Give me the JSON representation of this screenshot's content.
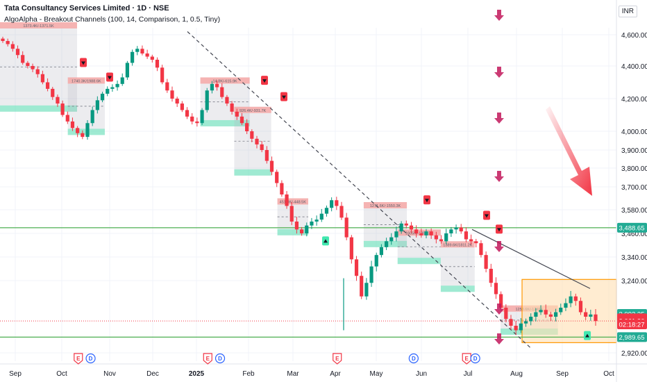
{
  "header": {
    "title": "Tata Consultancy Services Limited · 1D · NSE",
    "indicator": "AlgoAlpha - Breakout Channels (100, 14, Comparison, 1, 0.5, Tiny)",
    "currency": "INR"
  },
  "chart_data": {
    "type": "candlestick",
    "title": "Tata Consultancy Services Limited · 1D · NSE",
    "y_axis": {
      "ticks": [
        "4,600.00",
        "4,400.00",
        "4,200.00",
        "4,000.00",
        "3,900.00",
        "3,800.00",
        "3,700.00",
        "3,580.00",
        "3,460.00",
        "3,340.00",
        "3,240.00",
        "2,920.00"
      ],
      "tick_values": [
        4600,
        4400,
        4200,
        4000,
        3900,
        3800,
        3700,
        3580,
        3460,
        3340,
        3240,
        2920
      ]
    },
    "x_axis": {
      "labels": [
        "Sep",
        "Oct",
        "Nov",
        "Dec",
        "2025",
        "Feb",
        "Mar",
        "Apr",
        "May",
        "Jun",
        "Jul",
        "Aug",
        "Sep",
        "Oct"
      ]
    },
    "price_labels": [
      {
        "text": "3,488.65",
        "value": 3488.65,
        "color": "#22ab94"
      },
      {
        "text": "3,092.35",
        "value": 3092.35,
        "color": "#22ab94"
      },
      {
        "text": "3,072.73",
        "value": 3072.73,
        "color": "#f23645"
      },
      {
        "text": "3,061.30",
        "value": 3061.3,
        "color": "#f23645"
      },
      {
        "text": "02:18:27",
        "value": 3046,
        "color": "#f23645"
      },
      {
        "text": "2,989.65",
        "value": 2989.65,
        "color": "#22ab94"
      }
    ],
    "horizontal_lines": [
      {
        "value": 3488.65,
        "color": "#4caf50",
        "style": "solid"
      },
      {
        "value": 2989.65,
        "color": "#4caf50",
        "style": "solid"
      },
      {
        "value": 3061.3,
        "color": "#f23645",
        "style": "dotted"
      }
    ],
    "approx_closes": [
      4560,
      4540,
      4510,
      4470,
      4420,
      4400,
      4380,
      4350,
      4300,
      4260,
      4210,
      4170,
      4100,
      4060,
      4020,
      3990,
      3970,
      4050,
      4130,
      4190,
      4230,
      4260,
      4270,
      4290,
      4330,
      4420,
      4490,
      4510,
      4480,
      4460,
      4440,
      4390,
      4300,
      4250,
      4200,
      4170,
      4130,
      4090,
      4060,
      4050,
      4130,
      4250,
      4290,
      4270,
      4210,
      4170,
      4120,
      4090,
      4050,
      4000,
      3960,
      3930,
      3900,
      3840,
      3780,
      3720,
      3660,
      3600,
      3520,
      3480,
      3460,
      3500,
      3520,
      3530,
      3560,
      3590,
      3630,
      3600,
      3540,
      3440,
      3330,
      3260,
      3170,
      3230,
      3300,
      3350,
      3390,
      3420,
      3440,
      3470,
      3510,
      3500,
      3480,
      3460,
      3450,
      3470,
      3450,
      3430,
      3420,
      3460,
      3480,
      3490,
      3470,
      3430,
      3420,
      3410,
      3350,
      3290,
      3230,
      3180,
      3120,
      3070,
      3040,
      3020,
      3050,
      3060,
      3080,
      3100,
      3110,
      3090,
      3080,
      3100,
      3120,
      3140,
      3170,
      3150,
      3100,
      3080,
      3090,
      3061
    ],
    "channels": [
      {
        "start": 0.0,
        "end": 0.125,
        "top": 4680,
        "bottom": 4120,
        "label": "1373.4K/-1371.5K"
      },
      {
        "start": 0.11,
        "end": 0.17,
        "top": 4330,
        "bottom": 3980,
        "label": "1740.3K/1988.6K"
      },
      {
        "start": 0.325,
        "end": 0.405,
        "top": 4330,
        "bottom": 4030,
        "label": "14.8K/-615.9K"
      },
      {
        "start": 0.38,
        "end": 0.44,
        "top": 4150,
        "bottom": 3760,
        "label": "926.4K/-931.7K"
      },
      {
        "start": 0.45,
        "end": 0.5,
        "top": 3640,
        "bottom": 3450,
        "label": "451.8K/-448.5K"
      },
      {
        "start": 0.59,
        "end": 0.66,
        "top": 3620,
        "bottom": 3390,
        "label": "1271.6K/-1550.3K"
      },
      {
        "start": 0.645,
        "end": 0.715,
        "top": 3480,
        "bottom": 3310,
        "label": "1605K/-1354.2K"
      },
      {
        "start": 0.715,
        "end": 0.77,
        "top": 3420,
        "bottom": 3190,
        "label": "1389.6K/1811.2K"
      },
      {
        "start": 0.812,
        "end": 0.905,
        "top": 3130,
        "bottom": 3000,
        "label": "1253.6K/-1245K"
      }
    ],
    "event_badges": [
      {
        "type": "E",
        "pos": 0.118
      },
      {
        "type": "D",
        "pos": 0.138
      },
      {
        "type": "E",
        "pos": 0.328
      },
      {
        "type": "D",
        "pos": 0.348
      },
      {
        "type": "E",
        "pos": 0.538
      },
      {
        "type": "D",
        "pos": 0.662
      },
      {
        "type": "E",
        "pos": 0.748
      },
      {
        "type": "D",
        "pos": 0.762
      }
    ],
    "grid": true
  }
}
